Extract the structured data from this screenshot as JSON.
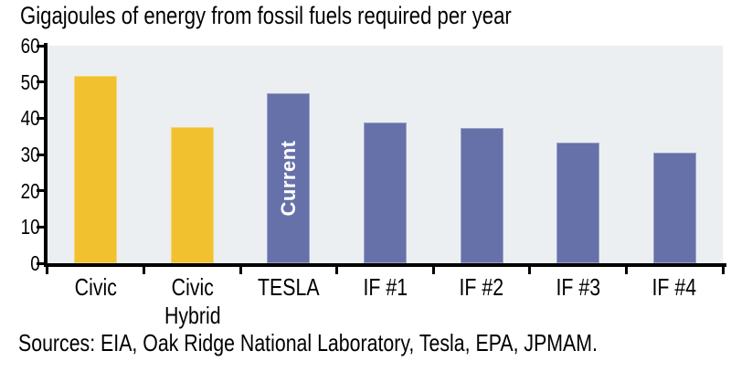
{
  "page": {
    "title": "Gigajoules of energy from fossil fuels required per year",
    "source_note": "Sources: EIA, Oak Ridge National Laboratory, Tesla, EPA, JPMAM."
  },
  "colors": {
    "civic_bar": "#F1C12F",
    "tesla_if_bar": "#6671A9",
    "plot_background": "#EBEFF2",
    "axis": "#000000",
    "current_text": "#FFFFFF",
    "text": "#000000",
    "page_background": "#FFFFFF"
  },
  "chart_data": {
    "type": "bar",
    "title": "Gigajoules of energy from fossil fuels required per year",
    "categories": [
      "Civic",
      "Civic Hybrid",
      "TESLA",
      "IF #1",
      "IF #2",
      "IF #3",
      "IF #4"
    ],
    "values": [
      51.7,
      37.5,
      46.9,
      38.8,
      37.4,
      33.4,
      30.4
    ],
    "series_colors": [
      "#F1C12F",
      "#F1C12F",
      "#6671A9",
      "#6671A9",
      "#6671A9",
      "#6671A9",
      "#6671A9"
    ],
    "xlabel": "",
    "ylabel": "",
    "ylim": [
      0,
      60
    ],
    "y_ticks": [
      0,
      10,
      20,
      30,
      40,
      50,
      60
    ],
    "grid": false,
    "legend": false,
    "plot_background": "#EBEFF2",
    "annotations": [
      {
        "category": "TESLA",
        "text": "Current",
        "orientation": "vertical-bottom-up",
        "color": "#FFFFFF"
      }
    ],
    "source_note": "Sources: EIA, Oak Ridge National Laboratory, Tesla, EPA, JPMAM."
  }
}
